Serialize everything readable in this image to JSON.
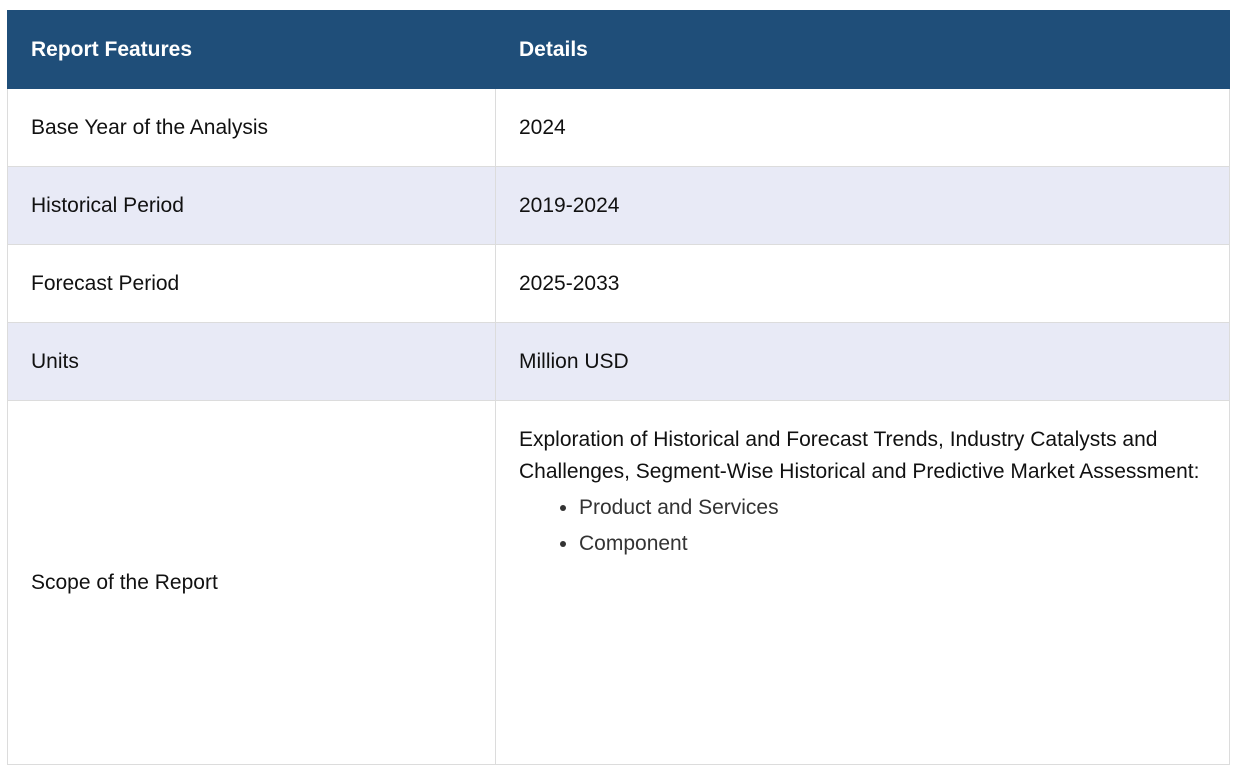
{
  "table": {
    "headers": [
      "Report Features",
      "Details"
    ],
    "rows": [
      {
        "feature": "Base Year of the Analysis",
        "detail": "2024"
      },
      {
        "feature": "Historical Period",
        "detail": "2019-2024"
      },
      {
        "feature": "Forecast Period",
        "detail": "2025-2033"
      },
      {
        "feature": "Units",
        "detail": "Million USD"
      }
    ],
    "scope": {
      "feature": "Scope of the Report",
      "text": "Exploration of Historical and Forecast Trends, Industry Catalysts and Challenges, Segment-Wise Historical and Predictive Market Assessment:",
      "items": [
        "Product and Services",
        "Component"
      ]
    }
  },
  "colors": {
    "header_bg": "#1f4e79",
    "alt_row_bg": "#e8eaf6",
    "border": "#dcdcdc"
  }
}
